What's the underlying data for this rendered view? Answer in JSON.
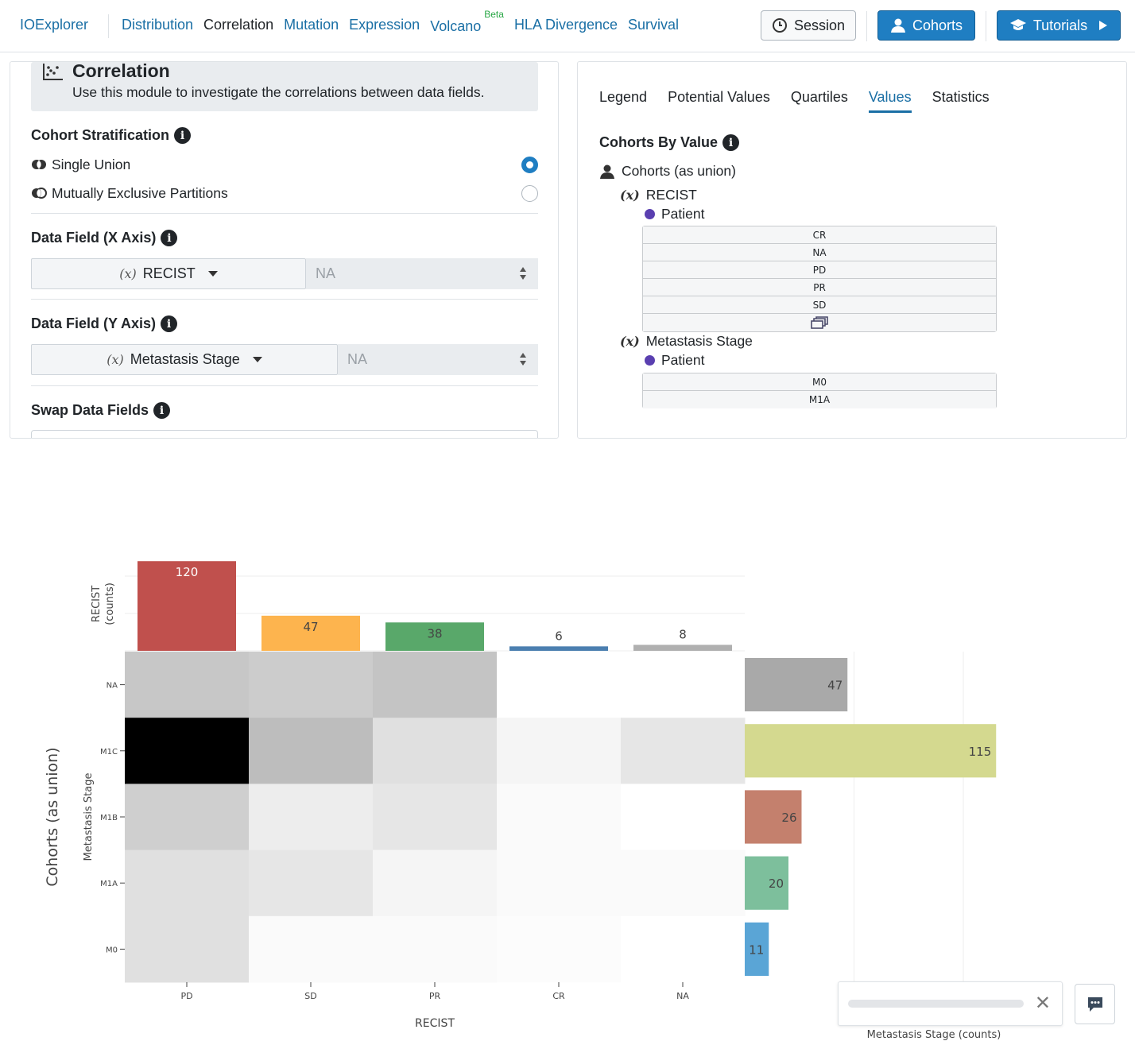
{
  "nav": {
    "brand": "IOExplorer",
    "links": [
      "Distribution",
      "Correlation",
      "Mutation",
      "Expression",
      "Volcano",
      "HLA Divergence",
      "Survival"
    ],
    "active": "Correlation",
    "beta_label": "Beta",
    "session_label": "Session",
    "cohorts_label": "Cohorts",
    "tutorials_label": "Tutorials"
  },
  "left": {
    "title": "Correlation",
    "description": "Use this module to investigate the correlations between data fields.",
    "cohort_strat_label": "Cohort Stratification",
    "options": [
      {
        "label": "Single Union",
        "checked": true
      },
      {
        "label": "Mutually Exclusive Partitions",
        "checked": false
      }
    ],
    "x_label": "Data Field (X Axis)",
    "x_value": "RECIST",
    "x_na": "NA",
    "y_label": "Data Field (Y Axis)",
    "y_value": "Metastasis Stage",
    "y_na": "NA",
    "swap_label": "Swap Data Fields",
    "var_glyph": "(x)"
  },
  "right": {
    "tabs": [
      "Legend",
      "Potential Values",
      "Quartiles",
      "Values",
      "Statistics"
    ],
    "active_tab": "Values",
    "cbv_label": "Cohorts By Value",
    "cohorts_union": "Cohorts (as union)",
    "field1": "RECIST",
    "field1_patient": "Patient",
    "field1_values": [
      "CR",
      "NA",
      "PD",
      "PR",
      "SD"
    ],
    "field2": "Metastasis Stage",
    "field2_patient": "Patient",
    "field2_values": [
      "M0",
      "M1A"
    ]
  },
  "chart_data": {
    "type": "heatmap",
    "x_categories": [
      "PD",
      "SD",
      "PR",
      "CR",
      "NA"
    ],
    "y_categories": [
      "NA",
      "M1C",
      "M1B",
      "M1A",
      "M0"
    ],
    "z_shade": [
      [
        0.22,
        0.2,
        0.23,
        0.0,
        0.0
      ],
      [
        1.0,
        0.26,
        0.12,
        0.04,
        0.1
      ],
      [
        0.19,
        0.07,
        0.1,
        0.02,
        0.0
      ],
      [
        0.12,
        0.1,
        0.04,
        0.02,
        0.02
      ],
      [
        0.12,
        0.02,
        0.02,
        0.01,
        0.0
      ]
    ],
    "top_bar": {
      "values": [
        120,
        47,
        38,
        6,
        8
      ],
      "colors": [
        "#c0504d",
        "#fdb44e",
        "#59a86a",
        "#4b7fb0",
        "#b0b0b0"
      ],
      "ylabel": "RECIST\n(counts)"
    },
    "side_bar": {
      "values": [
        47,
        115,
        26,
        20,
        11
      ],
      "colors": [
        "#a9a9a9",
        "#d4d98f",
        "#c4806d",
        "#7dbf9c",
        "#5aa5d6"
      ],
      "xlabel": "Metastasis Stage (counts)"
    },
    "xlabel": "RECIST",
    "ylabel": "Metastasis Stage",
    "group_label": "Cohorts (as union)"
  }
}
